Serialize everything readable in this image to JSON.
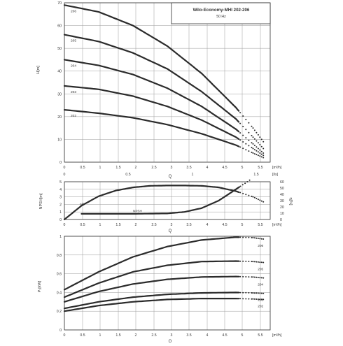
{
  "title_box": {
    "line1": "Wilo-Economy-MHI 202-206",
    "line2": "50 Hz"
  },
  "colors": {
    "curve": "#2b2b2b",
    "grid": "#9a9a9a",
    "frame": "#333333"
  },
  "chart_data": [
    {
      "type": "line",
      "panel": "head",
      "ylabel": "H[m]",
      "x_unit": "[m³/h]",
      "x_axis_label": "Q",
      "x_ticks": [
        "0",
        "0.5",
        "1",
        "1.5",
        "2",
        "2.5",
        "3",
        "3.5",
        "4",
        "4.5",
        "5",
        "5.5"
      ],
      "y_ticks": [
        "0",
        "10",
        "20",
        "30",
        "40",
        "50",
        "60",
        "70"
      ],
      "secondary_x_unit": "[l/s]",
      "secondary_x_ticks": [
        "0",
        "0.5",
        "1",
        "1.5"
      ],
      "xlim": [
        0,
        6
      ],
      "ylim": [
        0,
        70
      ],
      "grid": true,
      "series": [
        {
          "name": "206",
          "x": [
            0,
            1,
            2,
            3,
            4,
            5,
            5.5,
            5.8
          ],
          "y": [
            69,
            66,
            60,
            51,
            39,
            24,
            15,
            9
          ],
          "solid_until": 5.1
        },
        {
          "name": "205",
          "x": [
            0,
            1,
            2,
            3,
            4,
            5,
            5.5,
            5.8
          ],
          "y": [
            56,
            53,
            48,
            41,
            31,
            19,
            11,
            6
          ],
          "solid_until": 5.1
        },
        {
          "name": "204",
          "x": [
            0,
            1,
            2,
            3,
            4,
            5,
            5.5,
            5.8
          ],
          "y": [
            45,
            42.5,
            38.5,
            32.5,
            24.5,
            14.5,
            8,
            4
          ],
          "solid_until": 5.1
        },
        {
          "name": "203",
          "x": [
            0,
            1,
            2,
            3,
            4,
            5,
            5.5,
            5.8
          ],
          "y": [
            33.5,
            32,
            29,
            24.5,
            18.5,
            11,
            6,
            3
          ],
          "solid_until": 5.1
        },
        {
          "name": "202",
          "x": [
            0,
            1,
            2,
            3,
            4,
            5,
            5.5,
            5.8
          ],
          "y": [
            23,
            21.5,
            19.5,
            16.5,
            12.5,
            7.5,
            4,
            2
          ],
          "solid_until": 5.1
        }
      ]
    },
    {
      "type": "line",
      "panel": "npsh-efficiency",
      "ylabel": "NPSH[m]",
      "ylabel_right": "η[%]",
      "x_unit": "[m³/h]",
      "x_axis_label": "Q",
      "x_ticks": [
        "0",
        "0.5",
        "1",
        "1.5",
        "2",
        "2.5",
        "3",
        "3.5",
        "4",
        "4.5",
        "5",
        "5.5"
      ],
      "y_ticks": [
        "0",
        "1",
        "2",
        "3",
        "4",
        "5"
      ],
      "y_ticks_right": [
        "0",
        "10",
        "20",
        "30",
        "40",
        "50",
        "60"
      ],
      "xlim": [
        0,
        6
      ],
      "ylim": [
        0,
        5
      ],
      "ylim_right": [
        0,
        60
      ],
      "grid": true,
      "series": [
        {
          "name": "ηP",
          "axis": "right",
          "x": [
            0,
            0.5,
            1,
            1.5,
            2,
            2.5,
            3,
            3.5,
            4,
            4.5,
            5,
            5.5,
            5.8
          ],
          "y": [
            0,
            22,
            37,
            46,
            51,
            53.5,
            54,
            54,
            53.5,
            51,
            45,
            36,
            28
          ],
          "solid_until": 5.1
        },
        {
          "name": "NPSH",
          "axis": "left",
          "x": [
            0.5,
            1,
            2,
            3,
            3.5,
            4,
            4.5,
            5,
            5.4
          ],
          "y": [
            0.75,
            0.75,
            0.75,
            0.8,
            1.0,
            1.5,
            2.5,
            4.0,
            5.2
          ],
          "solid_until": 5.1
        }
      ]
    },
    {
      "type": "line",
      "panel": "power",
      "ylabel": "P₁[kW]",
      "x_unit": "[m³/h]",
      "x_axis_label": "Q",
      "x_ticks": [
        "0",
        "0.5",
        "1",
        "1.5",
        "2",
        "2.5",
        "3",
        "3.5",
        "4",
        "4.5",
        "5",
        "5.5"
      ],
      "y_ticks": [
        "0",
        "0.2",
        "0.4",
        "0.6",
        "0.8",
        "1"
      ],
      "xlim": [
        0,
        6
      ],
      "ylim": [
        0,
        1
      ],
      "grid": true,
      "series": [
        {
          "name": "206",
          "x": [
            0,
            1,
            2,
            3,
            4,
            5,
            5.5,
            5.8
          ],
          "y": [
            0.43,
            0.62,
            0.78,
            0.89,
            0.96,
            0.99,
            0.985,
            0.97
          ],
          "solid_until": 5.1
        },
        {
          "name": "205",
          "x": [
            0,
            1,
            2,
            3,
            4,
            5,
            5.5,
            5.8
          ],
          "y": [
            0.35,
            0.5,
            0.62,
            0.69,
            0.73,
            0.735,
            0.73,
            0.72
          ],
          "solid_until": 5.1
        },
        {
          "name": "204",
          "x": [
            0,
            1,
            2,
            3,
            4,
            5,
            5.5,
            5.8
          ],
          "y": [
            0.3,
            0.41,
            0.49,
            0.54,
            0.565,
            0.57,
            0.565,
            0.555
          ],
          "solid_until": 5.1
        },
        {
          "name": "203",
          "x": [
            0,
            1,
            2,
            3,
            4,
            5,
            5.5,
            5.8
          ],
          "y": [
            0.23,
            0.3,
            0.35,
            0.38,
            0.395,
            0.4,
            0.395,
            0.39
          ],
          "solid_until": 5.1
        },
        {
          "name": "202",
          "x": [
            0,
            1,
            2,
            3,
            4,
            5,
            5.5,
            5.8
          ],
          "y": [
            0.2,
            0.26,
            0.3,
            0.325,
            0.335,
            0.335,
            0.33,
            0.325
          ],
          "solid_until": 5.1
        }
      ]
    }
  ]
}
